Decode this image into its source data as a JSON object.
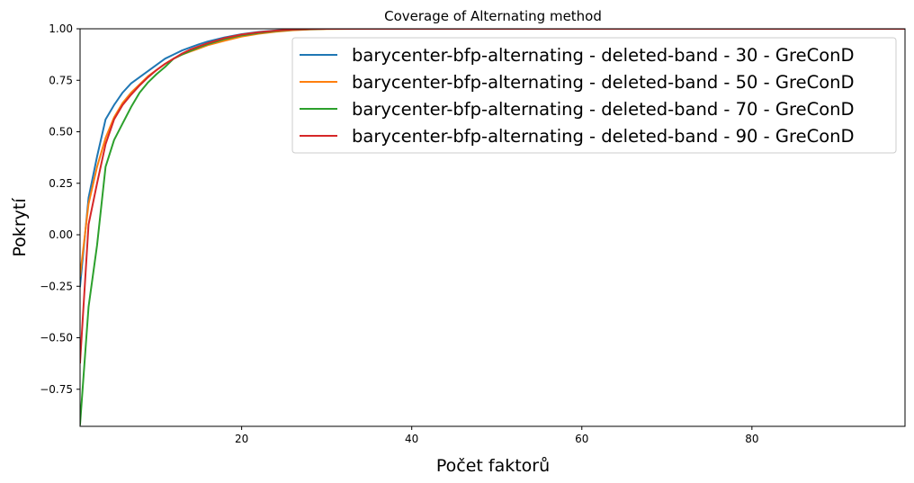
{
  "chart_data": {
    "type": "line",
    "title": "Coverage of Alternating method",
    "xlabel": "Počet faktorů",
    "ylabel": "Pokrytí",
    "xlim": [
      1,
      98
    ],
    "ylim": [
      -0.93,
      1.0
    ],
    "xticks": [
      20,
      40,
      60,
      80
    ],
    "yticks": [
      -0.75,
      -0.5,
      -0.25,
      0.0,
      0.25,
      0.5,
      0.75,
      1.0
    ],
    "xtick_labels": [
      "20",
      "40",
      "60",
      "80"
    ],
    "ytick_labels": [
      "−0.75",
      "−0.50",
      "−0.25",
      "0.00",
      "0.25",
      "0.50",
      "0.75",
      "1.00"
    ],
    "grid": false,
    "legend_position": "top-right",
    "series": [
      {
        "name": "barycenter-bfp-alternating - deleted-band - 30 - GreConD",
        "color": "#1f77b4",
        "x": [
          1,
          2,
          3,
          4,
          5,
          6,
          7,
          8,
          9,
          10,
          11,
          12,
          13,
          14,
          15,
          16,
          18,
          20,
          22,
          24,
          26,
          28,
          30,
          35,
          98
        ],
        "y": [
          -0.25,
          0.18,
          0.38,
          0.56,
          0.63,
          0.69,
          0.735,
          0.765,
          0.795,
          0.825,
          0.855,
          0.875,
          0.895,
          0.91,
          0.925,
          0.938,
          0.958,
          0.974,
          0.985,
          0.992,
          0.996,
          0.999,
          1.0,
          1.0,
          1.0
        ]
      },
      {
        "name": "barycenter-bfp-alternating - deleted-band - 50 - GreConD",
        "color": "#ff7f0e",
        "x": [
          1,
          2,
          3,
          4,
          5,
          6,
          7,
          8,
          9,
          10,
          11,
          12,
          13,
          14,
          15,
          16,
          18,
          20,
          22,
          24,
          26,
          28,
          30,
          35,
          98
        ],
        "y": [
          -0.2,
          0.15,
          0.33,
          0.47,
          0.57,
          0.64,
          0.69,
          0.73,
          0.77,
          0.8,
          0.83,
          0.855,
          0.875,
          0.89,
          0.905,
          0.92,
          0.942,
          0.962,
          0.976,
          0.986,
          0.993,
          0.997,
          0.999,
          1.0,
          1.0
        ]
      },
      {
        "name": "barycenter-bfp-alternating - deleted-band - 70 - GreConD",
        "color": "#2ca02c",
        "x": [
          1,
          2,
          3,
          4,
          5,
          6,
          7,
          8,
          9,
          10,
          11,
          12,
          13,
          14,
          15,
          16,
          18,
          20,
          22,
          24,
          26,
          28,
          30,
          35,
          98
        ],
        "y": [
          -0.92,
          -0.35,
          -0.05,
          0.33,
          0.46,
          0.54,
          0.62,
          0.69,
          0.74,
          0.78,
          0.815,
          0.855,
          0.875,
          0.893,
          0.91,
          0.925,
          0.95,
          0.968,
          0.98,
          0.989,
          0.995,
          0.998,
          1.0,
          1.0,
          1.0
        ]
      },
      {
        "name": "barycenter-bfp-alternating - deleted-band - 90 - GreConD",
        "color": "#d62728",
        "x": [
          1,
          2,
          3,
          4,
          5,
          6,
          7,
          8,
          9,
          10,
          11,
          12,
          13,
          14,
          15,
          16,
          18,
          20,
          22,
          24,
          26,
          28,
          30,
          35,
          98
        ],
        "y": [
          -0.62,
          0.05,
          0.25,
          0.44,
          0.56,
          0.63,
          0.68,
          0.725,
          0.765,
          0.8,
          0.83,
          0.855,
          0.88,
          0.9,
          0.915,
          0.93,
          0.955,
          0.972,
          0.983,
          0.991,
          0.996,
          0.999,
          1.0,
          1.0,
          1.0
        ]
      }
    ]
  }
}
